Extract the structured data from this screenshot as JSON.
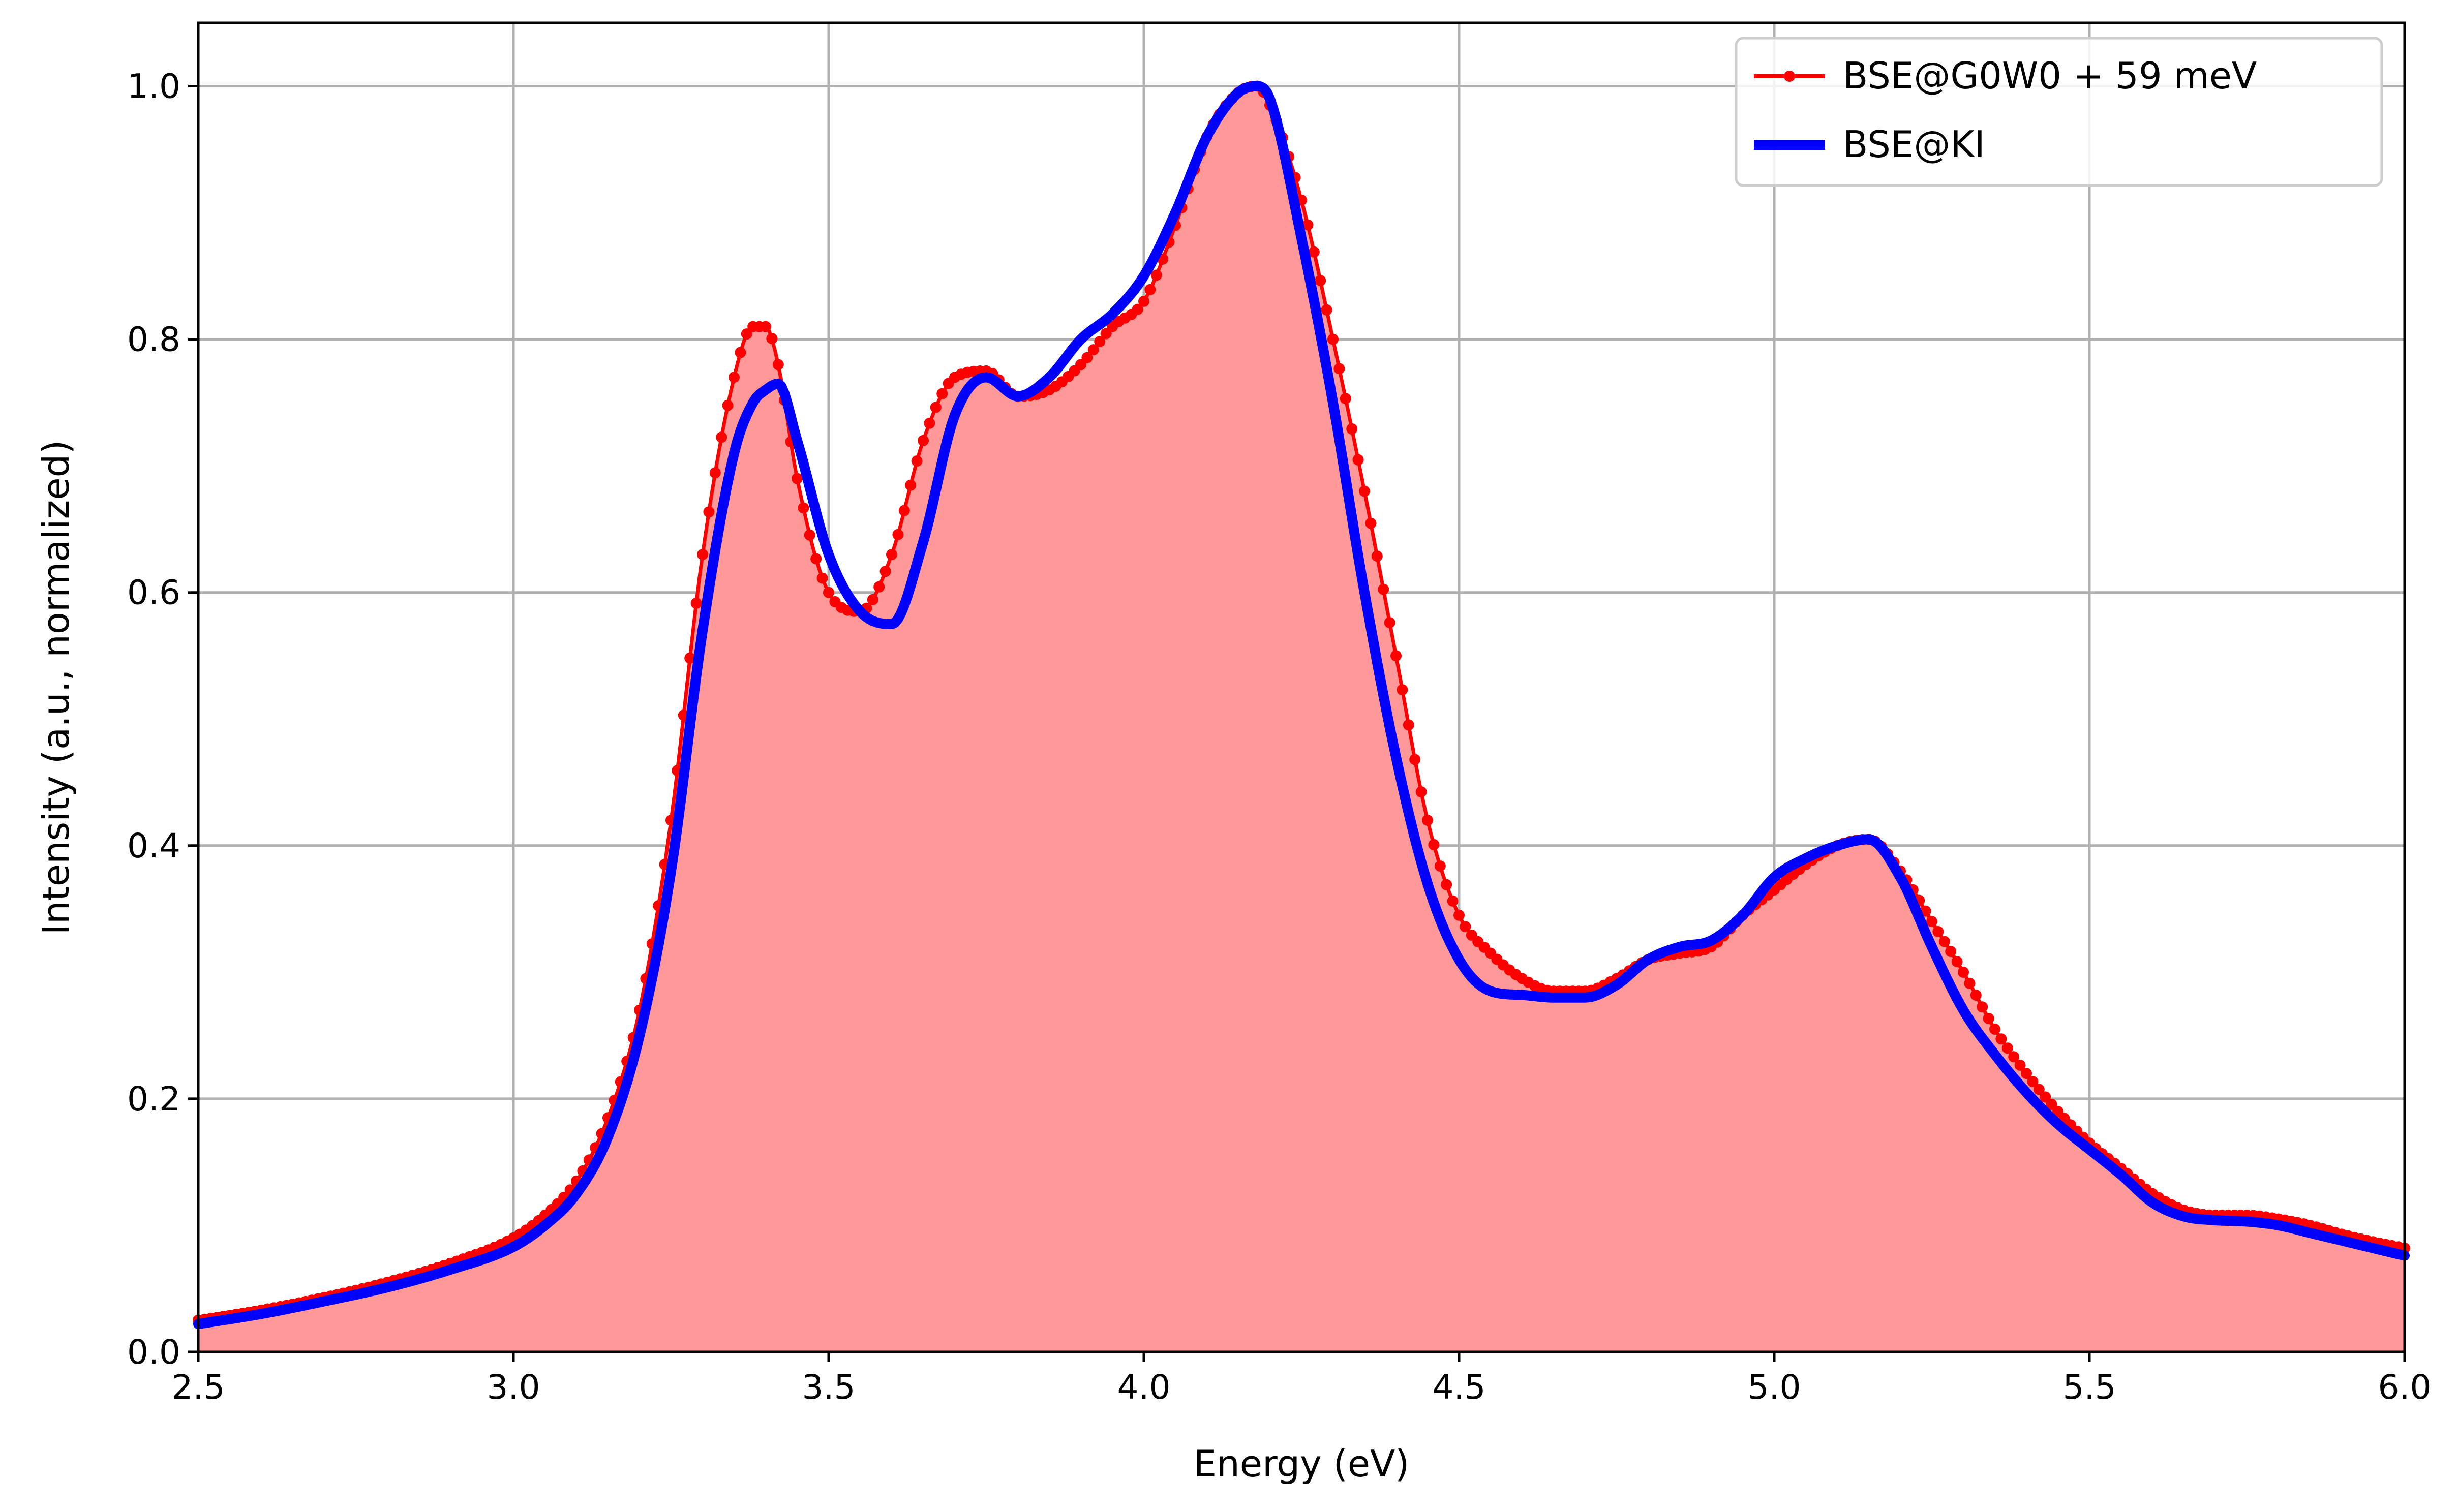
{
  "chart_data": {
    "type": "line",
    "title": "",
    "xlabel": "Energy (eV)",
    "ylabel": "Intensity (a.u., normalized)",
    "xlim": [
      2.5,
      6.0
    ],
    "ylim": [
      0.0,
      1.05
    ],
    "xticks": [
      2.5,
      3.0,
      3.5,
      4.0,
      4.5,
      5.0,
      5.5,
      6.0
    ],
    "xtick_labels": [
      "2.5",
      "3.0",
      "3.5",
      "4.0",
      "4.5",
      "5.0",
      "5.5",
      "6.0"
    ],
    "yticks": [
      0.0,
      0.2,
      0.4,
      0.6,
      0.8,
      1.0
    ],
    "ytick_labels": [
      "0.0",
      "0.2",
      "0.4",
      "0.6",
      "0.8",
      "1.0"
    ],
    "grid": true,
    "legend_position": "top-right",
    "series": [
      {
        "name": "BSE@G0W0 + 59 meV",
        "color": "#ff0000",
        "fill_color": "#ff9999",
        "style": "line-with-markers-filled",
        "x": [
          2.5,
          2.6,
          2.7,
          2.8,
          2.9,
          3.0,
          3.05,
          3.1,
          3.15,
          3.2,
          3.25,
          3.3,
          3.35,
          3.38,
          3.4,
          3.42,
          3.45,
          3.5,
          3.55,
          3.6,
          3.65,
          3.7,
          3.75,
          3.8,
          3.85,
          3.9,
          3.95,
          4.0,
          4.05,
          4.1,
          4.15,
          4.18,
          4.2,
          4.25,
          4.3,
          4.35,
          4.4,
          4.45,
          4.5,
          4.55,
          4.6,
          4.65,
          4.7,
          4.75,
          4.8,
          4.85,
          4.9,
          4.95,
          5.0,
          5.05,
          5.1,
          5.15,
          5.2,
          5.25,
          5.3,
          5.35,
          5.4,
          5.45,
          5.5,
          5.55,
          5.6,
          5.65,
          5.7,
          5.75,
          5.8,
          5.85,
          5.9,
          5.95,
          6.0
        ],
        "y": [
          0.025,
          0.033,
          0.043,
          0.055,
          0.07,
          0.09,
          0.108,
          0.135,
          0.185,
          0.27,
          0.42,
          0.63,
          0.77,
          0.81,
          0.81,
          0.78,
          0.69,
          0.6,
          0.585,
          0.63,
          0.72,
          0.77,
          0.775,
          0.755,
          0.76,
          0.78,
          0.81,
          0.83,
          0.89,
          0.96,
          0.995,
          1.0,
          0.985,
          0.91,
          0.8,
          0.68,
          0.55,
          0.42,
          0.345,
          0.315,
          0.295,
          0.285,
          0.285,
          0.295,
          0.31,
          0.315,
          0.32,
          0.345,
          0.365,
          0.385,
          0.4,
          0.405,
          0.38,
          0.34,
          0.3,
          0.255,
          0.22,
          0.19,
          0.165,
          0.145,
          0.125,
          0.112,
          0.108,
          0.108,
          0.105,
          0.1,
          0.093,
          0.087,
          0.082
        ]
      },
      {
        "name": "BSE@KI",
        "color": "#0000ff",
        "style": "thick-line",
        "x": [
          2.5,
          2.6,
          2.7,
          2.8,
          2.9,
          3.0,
          3.05,
          3.1,
          3.15,
          3.2,
          3.25,
          3.3,
          3.35,
          3.38,
          3.4,
          3.42,
          3.45,
          3.5,
          3.55,
          3.6,
          3.65,
          3.7,
          3.75,
          3.8,
          3.85,
          3.9,
          3.95,
          4.0,
          4.05,
          4.1,
          4.15,
          4.18,
          4.2,
          4.25,
          4.3,
          4.35,
          4.4,
          4.45,
          4.5,
          4.55,
          4.6,
          4.65,
          4.7,
          4.75,
          4.8,
          4.85,
          4.9,
          4.95,
          5.0,
          5.05,
          5.1,
          5.15,
          5.2,
          5.25,
          5.3,
          5.35,
          5.4,
          5.45,
          5.5,
          5.55,
          5.6,
          5.65,
          5.7,
          5.75,
          5.8,
          5.85,
          5.9,
          5.95,
          6.0
        ],
        "y": [
          0.022,
          0.03,
          0.04,
          0.051,
          0.065,
          0.083,
          0.1,
          0.125,
          0.17,
          0.25,
          0.38,
          0.57,
          0.71,
          0.75,
          0.76,
          0.765,
          0.72,
          0.63,
          0.585,
          0.575,
          0.64,
          0.74,
          0.77,
          0.755,
          0.77,
          0.8,
          0.82,
          0.85,
          0.9,
          0.96,
          0.995,
          1.0,
          0.99,
          0.88,
          0.75,
          0.6,
          0.47,
          0.37,
          0.31,
          0.285,
          0.282,
          0.28,
          0.28,
          0.29,
          0.31,
          0.32,
          0.325,
          0.345,
          0.375,
          0.39,
          0.4,
          0.405,
          0.375,
          0.32,
          0.27,
          0.235,
          0.205,
          0.18,
          0.16,
          0.14,
          0.118,
          0.107,
          0.104,
          0.103,
          0.1,
          0.094,
          0.088,
          0.082,
          0.076
        ]
      }
    ]
  }
}
